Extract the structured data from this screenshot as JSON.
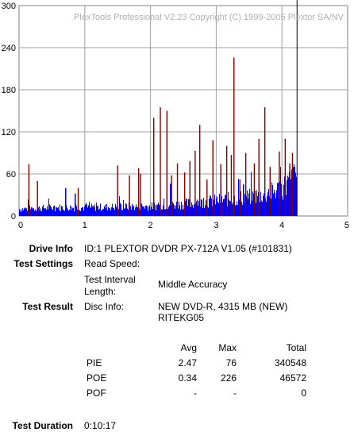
{
  "chart_data": {
    "type": "bar",
    "title": "PlexTools Professional V2.23 Copyright (C) 1999-2005 Plextor SA/NV",
    "xlabel": "",
    "ylabel": "",
    "xlim": [
      0,
      5
    ],
    "ylim": [
      0,
      300
    ],
    "x_ticks": [
      "0",
      "1",
      "2",
      "3",
      "4",
      "5"
    ],
    "y_ticks": [
      "300",
      "240",
      "180",
      "120",
      "60",
      "0"
    ],
    "grid": true,
    "series": [
      {
        "color": "#0000ff",
        "baseline_x": [
          0,
          0.5,
          1.0,
          1.5,
          2.0,
          2.5,
          3.0,
          3.5,
          3.8,
          4.0,
          4.2,
          4.22
        ],
        "baseline_y": [
          10,
          12,
          12,
          13,
          14,
          17,
          22,
          27,
          32,
          40,
          55,
          60
        ],
        "spikes": [
          [
            0.7,
            40
          ],
          [
            2.3,
            46
          ],
          [
            3.4,
            45
          ],
          [
            4.17,
            70
          ],
          [
            0.85,
            32
          ]
        ]
      },
      {
        "color": "#800000",
        "spikes": [
          [
            0.15,
            74
          ],
          [
            0.28,
            50
          ],
          [
            0.9,
            40
          ],
          [
            1.5,
            72
          ],
          [
            1.68,
            58
          ],
          [
            1.82,
            68
          ],
          [
            1.85,
            60
          ],
          [
            2.05,
            140
          ],
          [
            2.15,
            155
          ],
          [
            2.25,
            150
          ],
          [
            2.32,
            58
          ],
          [
            2.41,
            75
          ],
          [
            2.52,
            62
          ],
          [
            2.6,
            78
          ],
          [
            2.68,
            93
          ],
          [
            2.75,
            130
          ],
          [
            2.86,
            52
          ],
          [
            2.95,
            108
          ],
          [
            3.07,
            74
          ],
          [
            3.16,
            100
          ],
          [
            3.23,
            87
          ],
          [
            3.27,
            226
          ],
          [
            3.36,
            52
          ],
          [
            3.45,
            90
          ],
          [
            3.58,
            75
          ],
          [
            3.65,
            110
          ],
          [
            3.74,
            155
          ],
          [
            3.82,
            70
          ],
          [
            3.96,
            92
          ],
          [
            4.05,
            110
          ],
          [
            4.12,
            75
          ],
          [
            4.16,
            90
          ]
        ]
      }
    ],
    "marker_x": 4.23
  },
  "info": {
    "drive_label": "Drive Info",
    "drive_value": "ID:1 PLEXTOR DVDR PX-712A V1.05 (#101831)",
    "settings_label": "Test Settings",
    "read_speed_label": "Read Speed:",
    "interval_label_1": "Test Interval",
    "interval_label_2": "Length:",
    "interval_value": "Middle Accuracy",
    "result_label": "Test Result",
    "disc_info_label": "Disc Info:",
    "disc_info_value_1": "NEW DVD-R, 4315 MB (NEW)",
    "disc_info_value_2": "RITEKG05",
    "duration_label": "Test Duration",
    "duration_value": "0:10:17"
  },
  "stats": {
    "headers": {
      "avg": "Avg",
      "max": "Max",
      "total": "Total"
    },
    "rows": [
      {
        "name": "PIE",
        "avg": "2.47",
        "max": "76",
        "total": "340548"
      },
      {
        "name": "POE",
        "avg": "0.34",
        "max": "226",
        "total": "46572"
      },
      {
        "name": "POF",
        "avg": "-",
        "max": "-",
        "total": "0"
      }
    ]
  }
}
